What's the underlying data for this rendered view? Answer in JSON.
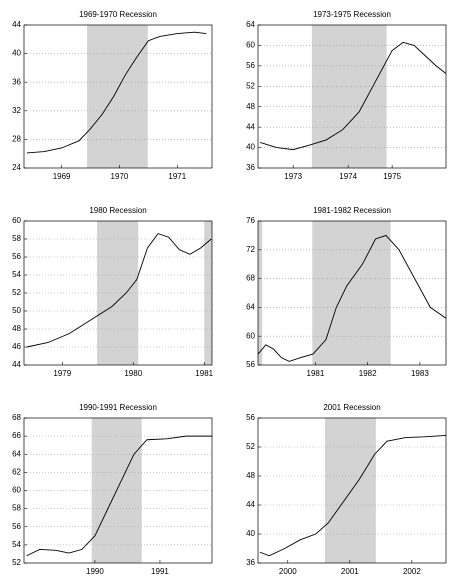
{
  "chart_data": [
    {
      "type": "line",
      "title": "1969-1970 Recession",
      "color": "#000000",
      "shade_color": "#d3d3d3",
      "grid": true,
      "x": [
        1968.9,
        1969.2,
        1969.5,
        1969.8,
        1970.0,
        1970.2,
        1970.4,
        1970.6,
        1970.8,
        1971.0,
        1971.2,
        1971.5,
        1971.8,
        1972.0
      ],
      "values": [
        26.1,
        26.3,
        26.8,
        27.8,
        29.5,
        31.5,
        34,
        37,
        39.5,
        41.8,
        42.4,
        42.8,
        43,
        42.8
      ],
      "recessions": [
        [
          1969.94,
          1970.99
        ]
      ],
      "xlim": [
        1968.85,
        1972.1
      ],
      "xticks": [
        {
          "value": 1969.5,
          "label": "1969"
        },
        {
          "value": 1970.5,
          "label": "1970"
        },
        {
          "value": 1971.5,
          "label": "1971"
        }
      ],
      "ylim": [
        24,
        44
      ],
      "yticks": [
        24,
        28,
        32,
        36,
        40,
        44
      ]
    },
    {
      "type": "line",
      "title": "1973-1975 Recession",
      "color": "#000000",
      "shade_color": "#d3d3d3",
      "grid": true,
      "x": [
        1972.9,
        1973.2,
        1973.5,
        1973.8,
        1974.1,
        1974.4,
        1974.7,
        1975.0,
        1975.3,
        1975.5,
        1975.7,
        1975.9,
        1976.1,
        1976.28
      ],
      "values": [
        41,
        40,
        39.6,
        40.5,
        41.5,
        43.5,
        47,
        53,
        59,
        60.6,
        60,
        58,
        56,
        54.5
      ],
      "recessions": [
        [
          1973.84,
          1975.2
        ]
      ],
      "xlim": [
        1972.86,
        1976.28
      ],
      "xticks": [
        {
          "value": 1973.5,
          "label": "1973"
        },
        {
          "value": 1974.5,
          "label": "1974"
        },
        {
          "value": 1975.3,
          "label": "1975"
        }
      ],
      "ylim": [
        36,
        64
      ],
      "yticks": [
        36,
        40,
        44,
        48,
        52,
        56,
        60,
        64
      ]
    },
    {
      "type": "line",
      "title": "1980 Recession",
      "color": "#000000",
      "shade_color": "#d3d3d3",
      "grid": true,
      "x": [
        1979.0,
        1979.3,
        1979.6,
        1979.9,
        1980.2,
        1980.4,
        1980.55,
        1980.7,
        1980.85,
        1981.0,
        1981.15,
        1981.3,
        1981.45,
        1981.6
      ],
      "values": [
        46,
        46.5,
        47.5,
        49,
        50.5,
        52,
        53.5,
        57,
        58.6,
        58.2,
        56.8,
        56.3,
        57,
        58
      ],
      "recessions": [
        [
          1979.99,
          1980.57
        ],
        [
          1981.5,
          1981.61
        ]
      ],
      "xlim": [
        1978.96,
        1981.61
      ],
      "xticks": [
        {
          "value": 1979.5,
          "label": "1979"
        },
        {
          "value": 1980.5,
          "label": "1980"
        },
        {
          "value": 1981.5,
          "label": "1981"
        }
      ],
      "ylim": [
        44,
        60
      ],
      "yticks": [
        44,
        46,
        48,
        50,
        52,
        54,
        56,
        58,
        60
      ]
    },
    {
      "type": "line",
      "title": "1981-1982 Recession",
      "color": "#000000",
      "shade_color": "#d3d3d3",
      "grid": true,
      "x": [
        1980.4,
        1980.55,
        1980.7,
        1980.85,
        1981.0,
        1981.2,
        1981.45,
        1981.7,
        1981.9,
        1982.1,
        1982.4,
        1982.65,
        1982.85,
        1983.1,
        1983.4,
        1983.7,
        1984.0
      ],
      "values": [
        57.5,
        58.8,
        58.2,
        57,
        56.5,
        57,
        57.5,
        59.5,
        64,
        67,
        70,
        73.5,
        74,
        72,
        68,
        64,
        62.5
      ],
      "recessions": [
        [
          1980.4,
          1980.48
        ],
        [
          1981.44,
          1982.94
        ]
      ],
      "xlim": [
        1980.4,
        1984.0
      ],
      "xticks": [
        {
          "value": 1981.5,
          "label": "1981"
        },
        {
          "value": 1982.5,
          "label": "1982"
        },
        {
          "value": 1983.5,
          "label": "1983"
        }
      ],
      "ylim": [
        56,
        76
      ],
      "yticks": [
        56,
        60,
        64,
        68,
        72,
        76
      ]
    },
    {
      "type": "line",
      "title": "1990-1991 Recession",
      "color": "#000000",
      "shade_color": "#d3d3d3",
      "grid": true,
      "x": [
        1989.45,
        1989.65,
        1989.9,
        1990.1,
        1990.3,
        1990.5,
        1990.7,
        1990.9,
        1991.1,
        1991.3,
        1991.6,
        1991.9,
        1992.3
      ],
      "values": [
        52.8,
        53.5,
        53.4,
        53.1,
        53.5,
        55,
        58,
        61,
        64,
        65.6,
        65.7,
        66,
        66
      ],
      "recessions": [
        [
          1990.45,
          1991.22
        ]
      ],
      "xlim": [
        1989.41,
        1992.3
      ],
      "xticks": [
        {
          "value": 1990.5,
          "label": "1990"
        },
        {
          "value": 1991.5,
          "label": "1991"
        }
      ],
      "ylim": [
        52,
        68
      ],
      "yticks": [
        52,
        54,
        56,
        58,
        60,
        62,
        64,
        66,
        68
      ]
    },
    {
      "type": "line",
      "title": "2001 Recession",
      "color": "#000000",
      "shade_color": "#d3d3d3",
      "grid": true,
      "x": [
        2000.05,
        2000.2,
        2000.45,
        2000.7,
        2000.95,
        2001.15,
        2001.4,
        2001.65,
        2001.9,
        2002.1,
        2002.4,
        2002.7,
        2003.05
      ],
      "values": [
        37.5,
        37,
        38,
        39.2,
        40,
        41.5,
        44.5,
        47.5,
        51,
        52.8,
        53.3,
        53.4,
        53.6
      ],
      "recessions": [
        [
          2001.1,
          2001.92
        ]
      ],
      "xlim": [
        2000.02,
        2003.05
      ],
      "xticks": [
        {
          "value": 2000.5,
          "label": "2000"
        },
        {
          "value": 2001.5,
          "label": "2001"
        },
        {
          "value": 2002.5,
          "label": "2002"
        }
      ],
      "ylim": [
        36,
        56
      ],
      "yticks": [
        36,
        40,
        44,
        48,
        52,
        56
      ]
    }
  ]
}
